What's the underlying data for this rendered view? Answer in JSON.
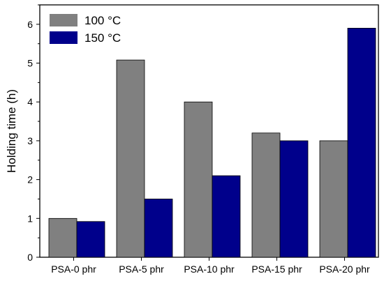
{
  "chart_data": {
    "type": "bar",
    "title": "",
    "xlabel": "",
    "ylabel": "Holding time (h)",
    "ylim": [
      0,
      6.5
    ],
    "yticks": [
      0,
      1,
      2,
      3,
      4,
      5,
      6
    ],
    "grid": false,
    "legend_position": "top-left",
    "categories": [
      "PSA-0 phr",
      "PSA-5 phr",
      "PSA-10 phr",
      "PSA-15 phr",
      "PSA-20 phr"
    ],
    "series": [
      {
        "name": "100 °C",
        "color": "#808080",
        "values": [
          1.0,
          5.08,
          4.0,
          3.2,
          3.0
        ]
      },
      {
        "name": "150 °C",
        "color": "#00008b",
        "values": [
          0.92,
          1.5,
          2.1,
          3.0,
          5.9
        ]
      }
    ]
  }
}
